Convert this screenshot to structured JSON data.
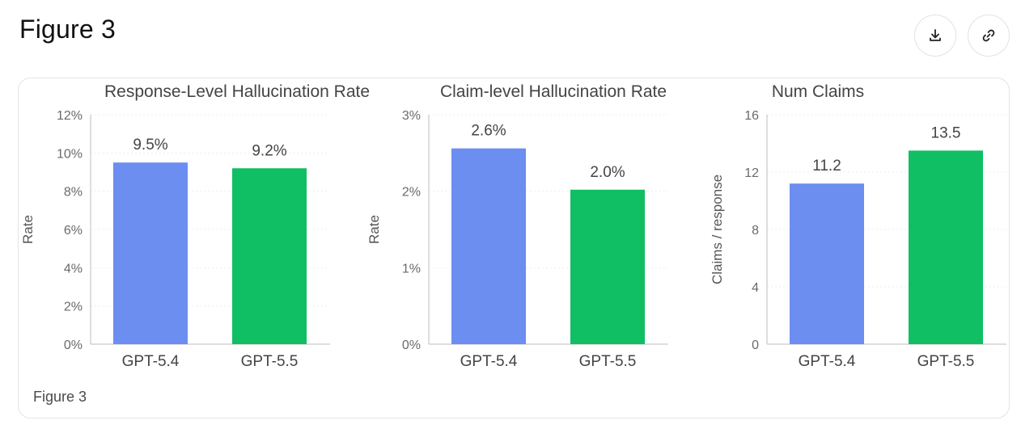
{
  "page": {
    "title": "Figure 3",
    "caption": "Figure 3"
  },
  "actions": {
    "download_icon": "download-icon",
    "link_icon": "link-icon"
  },
  "colors": {
    "gpt54": "#6b8ef0",
    "gpt55": "#10bf63"
  },
  "chart_data": [
    {
      "type": "bar",
      "title": "Response-Level Hallucination Rate",
      "xlabel": "",
      "ylabel": "Rate",
      "categories": [
        "GPT-5.4",
        "GPT-5.5"
      ],
      "values": [
        9.5,
        9.2
      ],
      "value_labels": [
        "9.5%",
        "9.2%"
      ],
      "ylim": [
        0,
        12
      ],
      "yticks": [
        0,
        2,
        4,
        6,
        8,
        10,
        12
      ],
      "ytick_labels": [
        "0%",
        "2%",
        "4%",
        "6%",
        "8%",
        "10%",
        "12%"
      ],
      "grid": true
    },
    {
      "type": "bar",
      "title": "Claim-level Hallucination Rate",
      "xlabel": "",
      "ylabel": "Rate",
      "categories": [
        "GPT-5.4",
        "GPT-5.5"
      ],
      "values": [
        2.56,
        2.02
      ],
      "value_labels": [
        "2.6%",
        "2.0%"
      ],
      "ylim": [
        0,
        3
      ],
      "yticks": [
        0,
        1,
        2,
        3
      ],
      "ytick_labels": [
        "0%",
        "1%",
        "2%",
        "3%"
      ],
      "grid": true
    },
    {
      "type": "bar",
      "title": "Num Claims",
      "xlabel": "",
      "ylabel": "Claims / response",
      "categories": [
        "GPT-5.4",
        "GPT-5.5"
      ],
      "values": [
        11.2,
        13.5
      ],
      "value_labels": [
        "11.2",
        "13.5"
      ],
      "ylim": [
        0,
        16
      ],
      "yticks": [
        0,
        4,
        8,
        12,
        16
      ],
      "ytick_labels": [
        "0",
        "4",
        "8",
        "12",
        "16"
      ],
      "grid": true
    }
  ]
}
